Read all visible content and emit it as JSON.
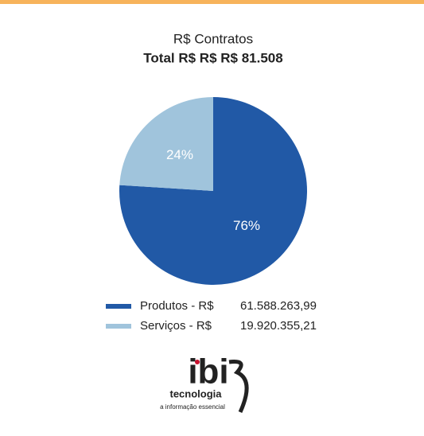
{
  "chart_data": {
    "type": "pie",
    "title": "R$ Contratos",
    "subtitle": "Total R$ R$ R$ 81.508",
    "categories": [
      "Produtos - R$",
      "Serviços - R$"
    ],
    "values": [
      76,
      24
    ],
    "value_labels": [
      "76%",
      "24%"
    ],
    "colors": [
      "#2159a6",
      "#a0c4dc"
    ],
    "legend_values": [
      "61.588.263,99",
      "19.920.355,21"
    ]
  },
  "logo": {
    "name": "ibi",
    "subtitle": "tecnologia",
    "tagline": "a informação essencial"
  }
}
